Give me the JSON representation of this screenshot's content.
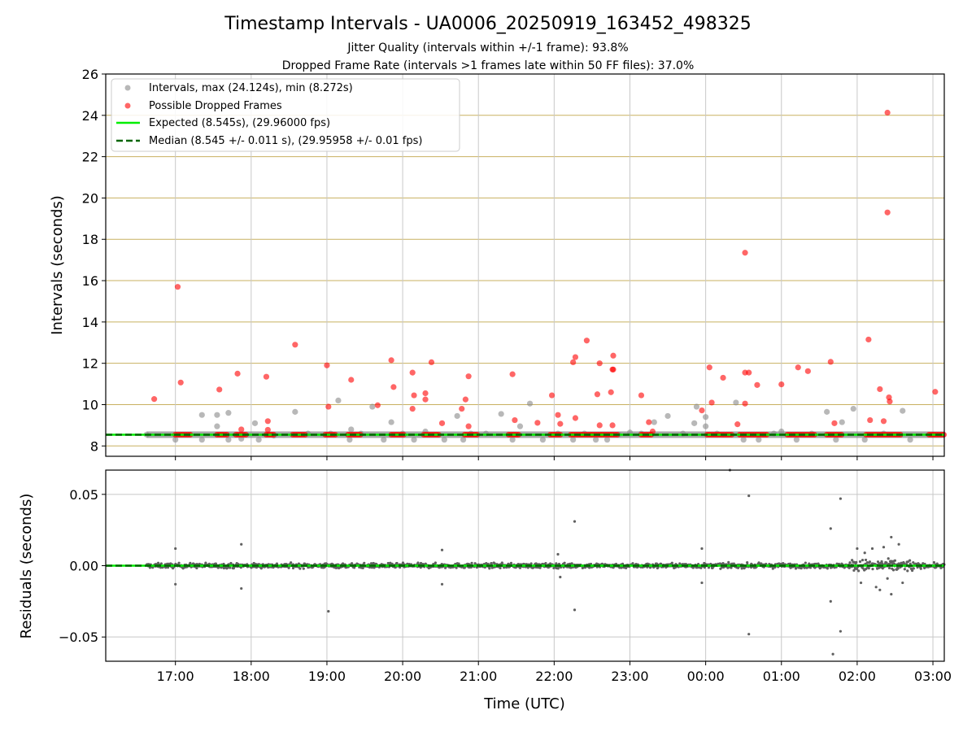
{
  "title": "Timestamp Intervals - UA0006_20250919_163452_498325",
  "subtitle_1": "Jitter Quality (intervals within +/-1 frame): 93.8%",
  "subtitle_2": "Dropped Frame Rate (intervals >1 frames late within 50 FF files): 37.0%",
  "chart_data": [
    {
      "type": "scatter",
      "panel": "top",
      "xlabel": "",
      "ylabel": "Intervals (seconds)",
      "xlim": [
        16.08,
        27.15
      ],
      "ylim": [
        7.5,
        26
      ],
      "yticks": [
        8,
        10,
        12,
        14,
        16,
        18,
        20,
        22,
        24,
        26
      ],
      "grid": "on",
      "legend_position": "top-left",
      "legend": [
        "Intervals, max (24.124s), min (8.272s)",
        "Possible Dropped Frames",
        "Expected (8.545s), (29.96000 fps)",
        "Median (8.545 +/- 0.011 s), (29.95958 +/- 0.01 fps)"
      ],
      "colors": {
        "intervals": "#888888",
        "dropped": "#ff0000",
        "expected": "#00ee00",
        "median": "#006400",
        "hgrid": "#c8b060",
        "vgrid": "#c8c8c8"
      },
      "expected_value": 8.545,
      "median_value": 8.545,
      "series": [
        {
          "name": "Intervals, max (24.124s), min (8.272s)",
          "points": [
            [
              16.62,
              8.55
            ],
            [
              17.0,
              8.3
            ],
            [
              17.35,
              9.5
            ],
            [
              17.35,
              8.3
            ],
            [
              17.55,
              9.5
            ],
            [
              17.55,
              8.95
            ],
            [
              17.7,
              9.6
            ],
            [
              17.7,
              8.3
            ],
            [
              17.87,
              8.35
            ],
            [
              18.05,
              9.1
            ],
            [
              18.1,
              8.3
            ],
            [
              18.3,
              8.5
            ],
            [
              18.58,
              9.65
            ],
            [
              18.75,
              8.6
            ],
            [
              19.05,
              8.6
            ],
            [
              19.15,
              10.2
            ],
            [
              19.3,
              8.3
            ],
            [
              19.32,
              8.8
            ],
            [
              19.45,
              8.6
            ],
            [
              19.6,
              9.9
            ],
            [
              19.75,
              8.3
            ],
            [
              19.85,
              9.15
            ],
            [
              20.0,
              8.6
            ],
            [
              20.15,
              8.3
            ],
            [
              20.3,
              8.7
            ],
            [
              20.55,
              8.3
            ],
            [
              20.72,
              9.45
            ],
            [
              20.8,
              8.3
            ],
            [
              20.9,
              8.6
            ],
            [
              21.1,
              8.6
            ],
            [
              21.3,
              9.55
            ],
            [
              21.45,
              8.3
            ],
            [
              21.55,
              8.95
            ],
            [
              21.68,
              10.05
            ],
            [
              21.85,
              8.3
            ],
            [
              22.05,
              8.6
            ],
            [
              22.25,
              8.3
            ],
            [
              22.4,
              8.6
            ],
            [
              22.55,
              8.3
            ],
            [
              22.7,
              8.3
            ],
            [
              22.85,
              8.55
            ],
            [
              23.0,
              8.65
            ],
            [
              23.15,
              8.6
            ],
            [
              23.32,
              9.15
            ],
            [
              23.5,
              9.45
            ],
            [
              23.7,
              8.6
            ],
            [
              23.85,
              9.1
            ],
            [
              23.88,
              9.9
            ],
            [
              24.0,
              9.4
            ],
            [
              24.0,
              8.95
            ],
            [
              24.15,
              8.6
            ],
            [
              24.4,
              10.1
            ],
            [
              24.5,
              8.3
            ],
            [
              24.7,
              8.3
            ],
            [
              24.9,
              8.6
            ],
            [
              25.0,
              8.7
            ],
            [
              25.2,
              8.3
            ],
            [
              25.4,
              8.6
            ],
            [
              25.6,
              9.65
            ],
            [
              25.72,
              8.3
            ],
            [
              25.8,
              9.15
            ],
            [
              25.95,
              9.8
            ],
            [
              26.1,
              8.3
            ],
            [
              26.35,
              8.6
            ],
            [
              26.6,
              9.7
            ],
            [
              26.7,
              8.3
            ],
            [
              27.0,
              8.55
            ]
          ]
        },
        {
          "name": "Possible Dropped Frames",
          "points": [
            [
              16.72,
              10.27
            ],
            [
              17.03,
              15.7
            ],
            [
              17.07,
              11.07
            ],
            [
              17.58,
              10.73
            ],
            [
              17.82,
              11.5
            ],
            [
              17.87,
              8.8
            ],
            [
              18.2,
              11.35
            ],
            [
              18.22,
              9.2
            ],
            [
              18.22,
              8.78
            ],
            [
              18.58,
              12.9
            ],
            [
              19.0,
              11.9
            ],
            [
              19.02,
              9.9
            ],
            [
              19.32,
              11.2
            ],
            [
              19.67,
              9.97
            ],
            [
              19.85,
              12.15
            ],
            [
              19.88,
              10.85
            ],
            [
              20.13,
              11.55
            ],
            [
              20.13,
              9.8
            ],
            [
              20.15,
              10.45
            ],
            [
              20.3,
              10.55
            ],
            [
              20.3,
              10.25
            ],
            [
              20.38,
              12.05
            ],
            [
              20.52,
              9.1
            ],
            [
              20.78,
              9.8
            ],
            [
              20.83,
              10.25
            ],
            [
              20.87,
              11.37
            ],
            [
              20.87,
              8.95
            ],
            [
              21.45,
              11.47
            ],
            [
              21.48,
              9.25
            ],
            [
              21.78,
              9.12
            ],
            [
              21.97,
              10.45
            ],
            [
              22.05,
              9.5
            ],
            [
              22.08,
              9.07
            ],
            [
              22.25,
              12.05
            ],
            [
              22.28,
              12.3
            ],
            [
              22.28,
              9.35
            ],
            [
              22.43,
              13.1
            ],
            [
              22.57,
              10.5
            ],
            [
              22.6,
              9.0
            ],
            [
              22.6,
              12.0
            ],
            [
              22.75,
              10.6
            ],
            [
              22.77,
              11.7
            ],
            [
              22.78,
              11.7
            ],
            [
              22.78,
              12.37
            ],
            [
              22.77,
              9.0
            ],
            [
              23.15,
              10.45
            ],
            [
              23.25,
              9.15
            ],
            [
              23.3,
              8.7
            ],
            [
              23.95,
              9.72
            ],
            [
              24.05,
              11.8
            ],
            [
              24.08,
              10.1
            ],
            [
              24.23,
              11.3
            ],
            [
              24.42,
              9.05
            ],
            [
              24.52,
              17.35
            ],
            [
              24.52,
              11.55
            ],
            [
              24.52,
              10.05
            ],
            [
              24.57,
              11.55
            ],
            [
              24.68,
              10.95
            ],
            [
              25.0,
              10.98
            ],
            [
              25.22,
              11.8
            ],
            [
              25.35,
              11.62
            ],
            [
              25.65,
              12.07
            ],
            [
              25.7,
              9.1
            ],
            [
              26.15,
              13.15
            ],
            [
              26.17,
              9.25
            ],
            [
              26.3,
              10.75
            ],
            [
              26.35,
              9.2
            ],
            [
              26.4,
              24.13
            ],
            [
              26.4,
              19.3
            ],
            [
              26.42,
              10.35
            ],
            [
              26.43,
              10.15
            ],
            [
              27.03,
              10.62
            ]
          ],
          "clusters": [
            [
              17.0,
              17.2
            ],
            [
              17.55,
              17.7
            ],
            [
              17.8,
              17.93
            ],
            [
              18.2,
              18.3
            ],
            [
              18.55,
              18.72
            ],
            [
              18.98,
              19.12
            ],
            [
              19.28,
              19.45
            ],
            [
              19.85,
              20.03
            ],
            [
              20.28,
              20.5
            ],
            [
              20.82,
              21.0
            ],
            [
              21.4,
              21.55
            ],
            [
              21.95,
              22.1
            ],
            [
              22.22,
              22.85
            ],
            [
              23.15,
              23.28
            ],
            [
              24.02,
              24.35
            ],
            [
              24.45,
              24.82
            ],
            [
              25.08,
              25.45
            ],
            [
              25.6,
              25.8
            ],
            [
              26.12,
              26.6
            ],
            [
              26.95,
              27.15
            ]
          ]
        }
      ]
    },
    {
      "type": "scatter",
      "panel": "bottom",
      "xlabel": "Time (UTC)",
      "ylabel": "Residuals (seconds)",
      "xlim": [
        16.08,
        27.15
      ],
      "ylim": [
        -0.067,
        0.067
      ],
      "yticks": [
        -0.05,
        0.0,
        0.05
      ],
      "ytick_labels": [
        "−0.05",
        "0.00",
        "0.05"
      ],
      "xticks": [
        17,
        18,
        19,
        20,
        21,
        22,
        23,
        24,
        25,
        26,
        27
      ],
      "xtick_labels": [
        "17:00",
        "18:00",
        "19:00",
        "20:00",
        "21:00",
        "22:00",
        "23:00",
        "00:00",
        "01:00",
        "02:00",
        "03:00"
      ],
      "grid": "on",
      "colors": {
        "residuals": "#606060",
        "zero_line": "#00ee00",
        "median": "#006400",
        "grid": "#c8c8c8"
      },
      "series": [
        {
          "name": "",
          "outliers": [
            [
              17.0,
              0.012
            ],
            [
              17.0,
              -0.013
            ],
            [
              17.87,
              0.015
            ],
            [
              17.87,
              -0.016
            ],
            [
              19.02,
              -0.032
            ],
            [
              20.52,
              0.011
            ],
            [
              20.52,
              -0.013
            ],
            [
              22.05,
              0.008
            ],
            [
              22.08,
              -0.008
            ],
            [
              22.27,
              0.031
            ],
            [
              22.27,
              -0.031
            ],
            [
              23.95,
              0.012
            ],
            [
              23.95,
              -0.012
            ],
            [
              24.32,
              0.067
            ],
            [
              24.57,
              0.049
            ],
            [
              24.57,
              -0.048
            ],
            [
              25.65,
              0.026
            ],
            [
              25.65,
              -0.025
            ],
            [
              25.68,
              -0.062
            ],
            [
              25.78,
              0.047
            ],
            [
              25.78,
              -0.046
            ],
            [
              26.0,
              0.012
            ],
            [
              26.05,
              -0.012
            ],
            [
              26.2,
              0.012
            ],
            [
              26.35,
              0.013
            ],
            [
              26.45,
              0.02
            ],
            [
              26.45,
              -0.02
            ],
            [
              26.3,
              -0.017
            ],
            [
              26.25,
              -0.015
            ],
            [
              26.55,
              0.015
            ],
            [
              26.6,
              -0.012
            ],
            [
              26.1,
              0.009
            ],
            [
              26.4,
              -0.009
            ]
          ]
        }
      ]
    }
  ]
}
